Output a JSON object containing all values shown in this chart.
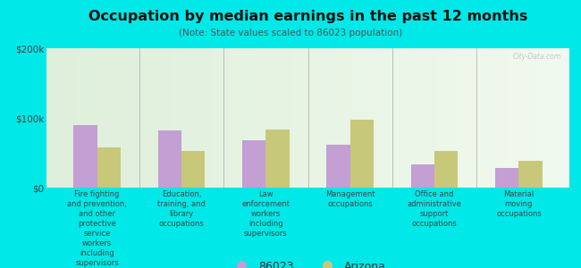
{
  "title": "Occupation by median earnings in the past 12 months",
  "subtitle": "(Note: State values scaled to 86023 population)",
  "categories": [
    "Fire fighting\nand prevention,\nand other\nprotective\nservice\nworkers\nincluding\nsupervisors",
    "Education,\ntraining, and\nlibrary\noccupations",
    "Law\nenforcement\nworkers\nincluding\nsupervisors",
    "Management\noccupations",
    "Office and\nadministrative\nsupport\noccupations",
    "Material\nmoving\noccupations"
  ],
  "values_86023": [
    90000,
    82000,
    68000,
    62000,
    33000,
    28000
  ],
  "values_arizona": [
    58000,
    52000,
    83000,
    98000,
    52000,
    38000
  ],
  "color_86023": "#c39fd4",
  "color_arizona": "#c8c87a",
  "bar_width": 0.28,
  "ylim": [
    0,
    200000
  ],
  "yticks": [
    0,
    100000,
    200000
  ],
  "ytick_labels": [
    "$0",
    "$100k",
    "$200k"
  ],
  "background_color": "#00e8e8",
  "plot_bg_color": "#e8f2e0",
  "legend_labels": [
    "86023",
    "Arizona"
  ],
  "watermark": "City-Data.com"
}
